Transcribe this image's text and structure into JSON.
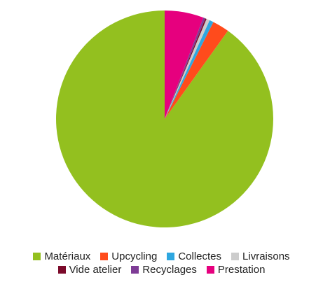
{
  "chart_data": {
    "type": "pie",
    "categories": [
      "Matériaux",
      "Upcycling",
      "Collectes",
      "Livraisons",
      "Vide atelier",
      "Recyclages",
      "Prestation"
    ],
    "values": [
      90.1,
      2.5,
      0.6,
      0.5,
      0.2,
      0.3,
      5.8
    ],
    "colors": [
      "#93c01f",
      "#ff4b1c",
      "#2ea7e0",
      "#cccccc",
      "#7b0a2a",
      "#7e3c96",
      "#e6007e"
    ]
  }
}
